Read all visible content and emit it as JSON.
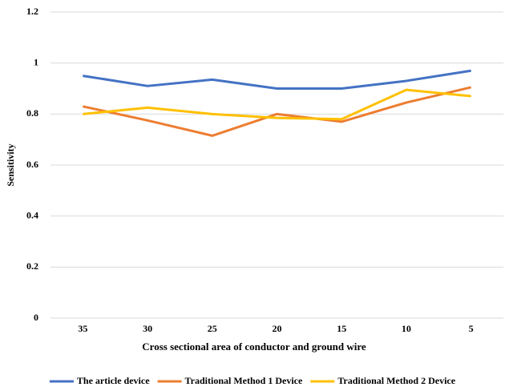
{
  "chart_data": {
    "type": "line",
    "x_label": "Cross sectional area of conductor and ground wire",
    "y_label": "Sensitivity",
    "categories": [
      "35",
      "30",
      "25",
      "20",
      "15",
      "10",
      "5"
    ],
    "series": [
      {
        "name": "The article device",
        "color": "#4472c4",
        "values": [
          0.95,
          0.91,
          0.935,
          0.9,
          0.9,
          0.93,
          0.97
        ]
      },
      {
        "name": "Traditional Method 1 Device",
        "color": "#ed7d31",
        "values": [
          0.83,
          0.775,
          0.715,
          0.8,
          0.77,
          0.845,
          0.905
        ]
      },
      {
        "name": "Traditional Method 2 Device",
        "color": "#ffc000",
        "values": [
          0.8,
          0.825,
          0.8,
          0.785,
          0.78,
          0.895,
          0.87
        ]
      }
    ],
    "ylim": [
      0,
      1.2
    ],
    "yticks": [
      0,
      0.2,
      0.4,
      0.6,
      0.8,
      1,
      1.2
    ],
    "grid": true,
    "legend": "bottom"
  }
}
